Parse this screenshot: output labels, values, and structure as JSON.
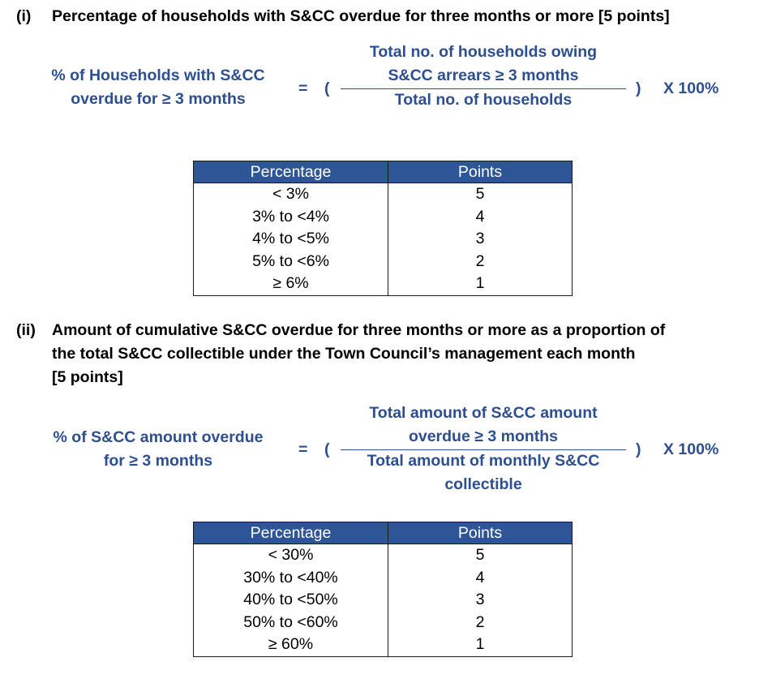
{
  "section_i": {
    "number": "(i)",
    "title": "Percentage of households with S&CC overdue for three months or more [5 points]",
    "formula": {
      "lhs_line1": "% of Households with S&CC",
      "lhs_line2": "overdue for ≥ 3 months",
      "equals": "=",
      "open_paren": "(",
      "numerator_line1": "Total no. of households owing",
      "numerator_line2": "S&CC arrears ≥ 3 months",
      "denominator_line1": "Total no. of households",
      "close_paren": ")",
      "multiplier": "X 100%"
    },
    "table": {
      "headers": [
        "Percentage",
        "Points"
      ],
      "rows": [
        [
          "< 3%",
          "5"
        ],
        [
          "3% to <4%",
          "4"
        ],
        [
          "4% to <5%",
          "3"
        ],
        [
          "5% to <6%",
          "2"
        ],
        [
          "≥ 6%",
          "1"
        ]
      ]
    }
  },
  "section_ii": {
    "number": "(ii)",
    "title_line1": "Amount of cumulative S&CC overdue for three months or more as a proportion of",
    "title_line2": "the total S&CC collectible under the Town Council’s management each month",
    "title_line3": "[5 points]",
    "formula": {
      "lhs_line1": "% of S&CC amount overdue",
      "lhs_line2": "for ≥ 3 months",
      "equals": "=",
      "open_paren": "(",
      "numerator_line1": "Total amount of S&CC amount",
      "numerator_line2": "overdue ≥ 3 months",
      "denominator_line1": "Total amount of monthly S&CC",
      "denominator_line2": "collectible",
      "close_paren": ")",
      "multiplier": "X 100%"
    },
    "table": {
      "headers": [
        "Percentage",
        "Points"
      ],
      "rows": [
        [
          "< 30%",
          "5"
        ],
        [
          "30% to <40%",
          "4"
        ],
        [
          "40% to <50%",
          "3"
        ],
        [
          "50% to <60%",
          "2"
        ],
        [
          "≥ 60%",
          "1"
        ]
      ]
    }
  },
  "colors": {
    "formula_text": "#2E4F8F",
    "table_header_bg": "#2E5596"
  }
}
